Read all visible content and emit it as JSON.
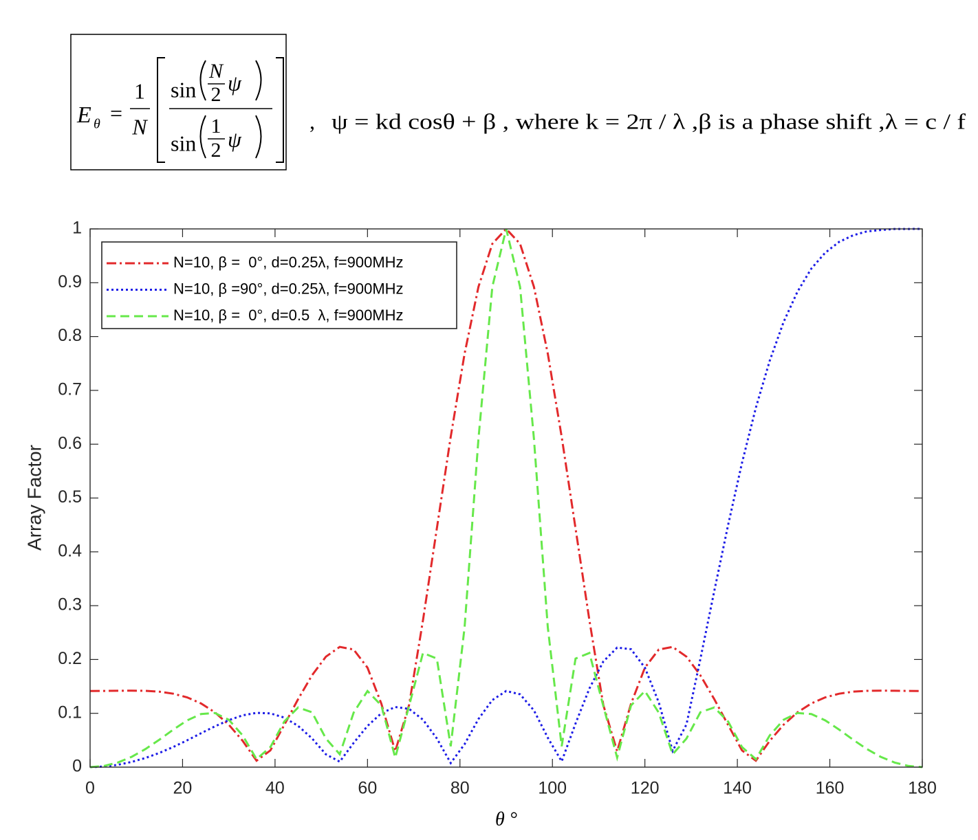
{
  "chart_data": {
    "type": "line",
    "formula": {
      "lhs": "E",
      "lhs_sub": "θ",
      "eq": "=",
      "coef_num": "1",
      "coef_den": "N",
      "num_fn": "sin",
      "num_frac_num": "N",
      "num_frac_den": "2",
      "num_var": "ψ",
      "den_fn": "sin",
      "den_frac_num": "1",
      "den_frac_den": "2",
      "den_var": "ψ"
    },
    "note_sep": ",",
    "note": "ψ = kd cosθ + β , where k = 2π / λ ,β is a phase shift ,λ = c / f",
    "xlabel": "θ °",
    "ylabel": "Array Factor",
    "xlim": [
      0,
      180
    ],
    "ylim": [
      0,
      1
    ],
    "xticks": [
      0,
      20,
      40,
      60,
      80,
      100,
      120,
      140,
      160,
      180
    ],
    "yticks": [
      0,
      0.1,
      0.2,
      0.3,
      0.4,
      0.5,
      0.6,
      0.7,
      0.8,
      0.9,
      1
    ],
    "grid": false,
    "legend": "northwest",
    "x": [
      0,
      3,
      6,
      9,
      12,
      15,
      18,
      21,
      24,
      27,
      30,
      33,
      36,
      39,
      42,
      45,
      48,
      51,
      54,
      57,
      60,
      63,
      66,
      69,
      72,
      75,
      78,
      81,
      84,
      87,
      90,
      93,
      96,
      99,
      102,
      105,
      108,
      111,
      114,
      117,
      120,
      123,
      126,
      129,
      132,
      135,
      138,
      141,
      144,
      147,
      150,
      153,
      156,
      159,
      162,
      165,
      168,
      171,
      174,
      177,
      180
    ],
    "series": [
      {
        "name": "N=10, β =  0°, d=0.25λ, f=900MHz",
        "color": "#e2292b",
        "dash": "14 5 3 5",
        "values": [
          0.1414,
          0.1416,
          0.1419,
          0.1421,
          0.1418,
          0.1402,
          0.1364,
          0.1296,
          0.1183,
          0.1018,
          0.0788,
          0.0489,
          0.0119,
          0.0311,
          0.0784,
          0.1264,
          0.1706,
          0.2052,
          0.2234,
          0.2185,
          0.1848,
          0.1178,
          0.0295,
          0.1157,
          0.2728,
          0.4435,
          0.6137,
          0.7682,
          0.8924,
          0.9723,
          1,
          0.9723,
          0.8924,
          0.7682,
          0.6137,
          0.4435,
          0.2728,
          0.1157,
          0.0295,
          0.1178,
          0.1848,
          0.2185,
          0.2234,
          0.2052,
          0.1706,
          0.1264,
          0.0784,
          0.0311,
          0.0119,
          0.0489,
          0.0788,
          0.1018,
          0.1183,
          0.1296,
          0.1364,
          0.1402,
          0.1418,
          0.1421,
          0.1419,
          0.1416,
          0.1414
        ]
      },
      {
        "name": "N=10, β =90°, d=0.25λ, f=900MHz",
        "color": "#1c1ce6",
        "dash": "3 4",
        "values": [
          0,
          0.0011,
          0.0043,
          0.0097,
          0.0171,
          0.0265,
          0.0375,
          0.0499,
          0.063,
          0.0758,
          0.0873,
          0.0962,
          0.1009,
          0.0999,
          0.092,
          0.0766,
          0.0534,
          0.0238,
          0.0101,
          0.045,
          0.0765,
          0.1002,
          0.1117,
          0.1082,
          0.0881,
          0.0533,
          0.0076,
          0.0426,
          0.0894,
          0.1246,
          0.1414,
          0.1353,
          0.1054,
          0.0546,
          0.0107,
          0.081,
          0.1461,
          0.1962,
          0.2221,
          0.2191,
          0.1848,
          0.1204,
          0.0301,
          0.0795,
          0.2009,
          0.3269,
          0.4499,
          0.5651,
          0.6677,
          0.755,
          0.827,
          0.8833,
          0.9263,
          0.9557,
          0.9758,
          0.988,
          0.9953,
          0.9979,
          0.9998,
          0.9999,
          1
        ]
      },
      {
        "name": "N=10, β =  0°, d=0.5  λ, f=900MHz",
        "color": "#66e84a",
        "dash": "13 7",
        "values": [
          0,
          0.0022,
          0.0086,
          0.0192,
          0.0337,
          0.0511,
          0.0698,
          0.0869,
          0.0987,
          0.1005,
          0.088,
          0.0589,
          0.0148,
          0.0373,
          0.0847,
          0.1109,
          0.1019,
          0.0532,
          0.0239,
          0.1012,
          0.1414,
          0.1146,
          0.0177,
          0.1139,
          0.2121,
          0.2017,
          0.0387,
          0.2598,
          0.6101,
          0.8924,
          1,
          0.8924,
          0.6101,
          0.2598,
          0.0387,
          0.2017,
          0.2121,
          0.1139,
          0.0177,
          0.1146,
          0.1414,
          0.1012,
          0.0239,
          0.0532,
          0.1019,
          0.1109,
          0.0847,
          0.0373,
          0.0148,
          0.0589,
          0.088,
          0.1005,
          0.0987,
          0.0869,
          0.0698,
          0.0511,
          0.0337,
          0.0192,
          0.0086,
          0.0022,
          0
        ]
      }
    ]
  }
}
